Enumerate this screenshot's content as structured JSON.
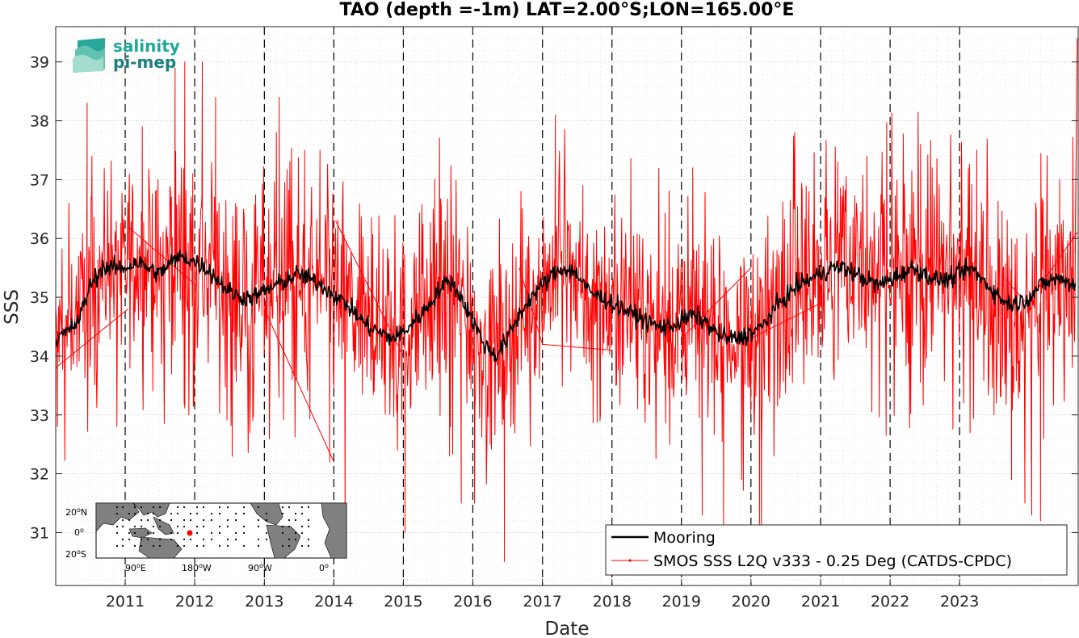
{
  "chart_data": {
    "type": "line",
    "title": "TAO (depth =-1m) LAT=2.00°S;LON=165.00°E",
    "xlabel": "Date",
    "ylabel": "SSS",
    "xlim": [
      "2010-01-01",
      "2024-09-15"
    ],
    "ylim": [
      30.1,
      39.6
    ],
    "yticks": [
      31,
      32,
      33,
      34,
      35,
      36,
      37,
      38,
      39
    ],
    "xticks": [
      {
        "label": "2011",
        "date": "2011-01-01"
      },
      {
        "label": "2012",
        "date": "2012-01-01"
      },
      {
        "label": "2013",
        "date": "2013-01-01"
      },
      {
        "label": "2014",
        "date": "2014-01-01"
      },
      {
        "label": "2015",
        "date": "2015-01-01"
      },
      {
        "label": "2016",
        "date": "2016-01-01"
      },
      {
        "label": "2017",
        "date": "2017-01-01"
      },
      {
        "label": "2018",
        "date": "2018-01-01"
      },
      {
        "label": "2019",
        "date": "2019-01-01"
      },
      {
        "label": "2020",
        "date": "2020-01-01"
      },
      {
        "label": "2021",
        "date": "2021-01-01"
      },
      {
        "label": "2022",
        "date": "2022-01-01"
      },
      {
        "label": "2023",
        "date": "2023-01-01"
      }
    ],
    "grid": true,
    "year_markers": "dashed vertical lines at each year start",
    "legend_position": "bottom-right",
    "series": [
      {
        "name": "Mooring",
        "color": "#000000",
        "style": "line",
        "x": [
          "2010-01-01",
          "2010-03-01",
          "2010-05-01",
          "2010-07-01",
          "2010-09-01",
          "2010-11-01",
          "2011-01-01",
          "2011-03-01",
          "2011-05-01",
          "2011-07-01",
          "2011-09-01",
          "2011-11-01",
          "2012-01-01",
          "2012-03-01",
          "2012-05-01",
          "2012-07-01",
          "2012-09-01",
          "2012-11-01",
          "2013-01-01",
          "2013-03-01",
          "2013-05-01",
          "2013-07-01",
          "2013-09-01",
          "2013-11-01",
          "2014-03-01",
          "2014-05-01",
          "2014-07-01",
          "2014-09-01",
          "2014-11-01",
          "2015-01-01",
          "2015-03-01",
          "2015-05-01",
          "2015-07-01",
          "2015-09-01",
          "2015-11-01",
          "2016-01-01",
          "2016-03-01",
          "2016-05-01",
          "2016-07-01",
          "2016-09-01",
          "2016-11-01",
          "2017-01-01",
          "2017-03-01",
          "2017-05-01",
          "2017-07-01",
          "2017-09-01",
          "2018-01-01",
          "2018-03-01",
          "2018-05-01",
          "2018-07-01",
          "2018-09-01",
          "2018-11-01",
          "2019-01-01",
          "2019-03-01",
          "2019-05-01",
          "2019-07-01",
          "2019-09-01",
          "2019-11-01",
          "2020-01-01",
          "2020-03-01",
          "2020-05-01",
          "2020-07-01",
          "2020-09-01",
          "2020-11-01",
          "2021-01-01",
          "2021-03-01",
          "2021-05-01",
          "2021-07-01",
          "2021-09-01",
          "2021-11-01",
          "2022-01-01",
          "2022-03-01",
          "2022-05-01",
          "2022-07-01",
          "2022-09-01",
          "2022-11-01",
          "2023-01-01",
          "2023-03-01",
          "2023-05-01",
          "2023-07-01",
          "2023-09-01",
          "2023-11-01",
          "2024-01-01",
          "2024-03-01",
          "2024-05-01",
          "2024-07-01",
          "2024-09-01"
        ],
        "y": [
          34.3,
          34.4,
          34.6,
          35.2,
          35.5,
          35.5,
          35.5,
          35.6,
          35.5,
          35.4,
          35.6,
          35.7,
          35.6,
          35.5,
          35.3,
          35.1,
          35.0,
          35.0,
          35.1,
          35.2,
          35.3,
          35.4,
          35.3,
          35.2,
          34.9,
          34.7,
          34.5,
          34.4,
          34.3,
          34.4,
          34.6,
          34.8,
          35.1,
          35.3,
          35.0,
          34.6,
          34.2,
          34.0,
          34.3,
          34.7,
          35.0,
          35.2,
          35.4,
          35.5,
          35.4,
          35.1,
          34.9,
          34.8,
          34.7,
          34.6,
          34.5,
          34.5,
          34.6,
          34.7,
          34.6,
          34.4,
          34.3,
          34.3,
          34.4,
          34.5,
          34.8,
          35.0,
          35.2,
          35.3,
          35.4,
          35.5,
          35.5,
          35.4,
          35.3,
          35.2,
          35.3,
          35.4,
          35.5,
          35.4,
          35.3,
          35.3,
          35.4,
          35.5,
          35.3,
          35.1,
          34.9,
          34.9,
          35.0,
          35.2,
          35.3,
          35.3,
          35.2
        ]
      },
      {
        "name": "SMOS SSS L2Q v333 - 0.25 Deg (CATDS-CPDC)",
        "color": "#ff0000",
        "style": "line with point markers",
        "x": [
          "2010-01-01",
          "2010-03-01",
          "2010-05-01",
          "2010-07-01",
          "2010-09-01",
          "2010-11-01",
          "2011-01-01",
          "2011-03-01",
          "2011-05-01",
          "2011-07-01",
          "2011-09-01",
          "2011-11-01",
          "2012-01-01",
          "2012-03-01",
          "2012-05-01",
          "2012-07-01",
          "2012-09-01",
          "2012-11-01",
          "2013-01-01",
          "2013-03-01",
          "2013-05-01",
          "2013-07-01",
          "2013-09-01",
          "2013-11-01",
          "2014-03-01",
          "2014-05-01",
          "2014-07-01",
          "2014-09-01",
          "2014-11-01",
          "2015-01-01",
          "2015-03-01",
          "2015-05-01",
          "2015-07-01",
          "2015-09-01",
          "2015-11-01",
          "2016-01-01",
          "2016-03-01",
          "2016-05-01",
          "2016-07-01",
          "2016-09-01",
          "2016-11-01",
          "2017-01-01",
          "2017-03-01",
          "2017-05-01",
          "2017-07-01",
          "2017-09-01",
          "2018-01-01",
          "2018-03-01",
          "2018-05-01",
          "2018-07-01",
          "2018-09-01",
          "2018-11-01",
          "2019-01-01",
          "2019-03-01",
          "2019-05-01",
          "2019-07-01",
          "2019-09-01",
          "2019-11-01",
          "2020-01-01",
          "2020-03-01",
          "2020-05-01",
          "2020-07-01",
          "2020-09-01",
          "2020-11-01",
          "2021-01-01",
          "2021-03-01",
          "2021-05-01",
          "2021-07-01",
          "2021-09-01",
          "2021-11-01",
          "2022-01-01",
          "2022-03-01",
          "2022-05-01",
          "2022-07-01",
          "2022-09-01",
          "2022-11-01",
          "2023-01-01",
          "2023-03-01",
          "2023-05-01",
          "2023-07-01",
          "2023-09-01",
          "2023-11-01",
          "2024-01-01",
          "2024-03-01",
          "2024-05-01",
          "2024-07-01",
          "2024-09-01"
        ],
        "y": [
          34.3,
          34.5,
          34.8,
          35.3,
          35.5,
          35.6,
          35.6,
          35.7,
          35.5,
          35.4,
          35.7,
          35.8,
          35.7,
          35.5,
          35.3,
          35.1,
          35.0,
          35.1,
          35.2,
          35.3,
          35.4,
          35.4,
          35.3,
          35.2,
          34.9,
          34.7,
          34.5,
          34.4,
          34.3,
          34.4,
          34.6,
          34.8,
          35.1,
          35.2,
          34.9,
          34.5,
          34.1,
          34.0,
          34.3,
          34.7,
          35.0,
          35.2,
          35.4,
          35.5,
          35.4,
          35.0,
          34.9,
          34.8,
          34.7,
          34.6,
          34.5,
          34.5,
          34.6,
          34.6,
          34.5,
          34.3,
          34.2,
          34.2,
          34.4,
          34.5,
          34.8,
          35.0,
          35.2,
          35.4,
          35.4,
          35.5,
          35.5,
          35.4,
          35.3,
          35.3,
          35.4,
          35.5,
          35.6,
          35.5,
          35.4,
          35.3,
          35.4,
          35.5,
          35.2,
          34.9,
          34.6,
          34.5,
          34.8,
          35.2,
          35.4,
          35.3,
          35.3
        ],
        "spread": [
          0.5,
          0.5,
          0.6,
          0.7,
          0.7,
          0.7,
          0.7,
          0.8,
          0.8,
          0.8,
          0.9,
          0.9,
          0.9,
          0.9,
          0.9,
          0.9,
          0.9,
          0.9,
          0.9,
          0.9,
          0.9,
          0.9,
          0.9,
          0.9,
          0.8,
          0.8,
          0.8,
          0.8,
          0.8,
          0.8,
          0.8,
          0.8,
          0.8,
          0.8,
          0.8,
          0.8,
          0.8,
          0.8,
          0.8,
          0.8,
          0.7,
          0.7,
          0.7,
          0.7,
          0.7,
          0.7,
          0.7,
          0.7,
          0.7,
          0.7,
          0.7,
          0.7,
          0.7,
          0.7,
          0.8,
          0.8,
          0.8,
          0.8,
          0.8,
          0.8,
          0.8,
          0.8,
          0.8,
          0.8,
          0.8,
          0.8,
          0.8,
          0.8,
          0.8,
          0.8,
          0.8,
          0.8,
          0.8,
          0.8,
          0.8,
          0.8,
          0.8,
          0.8,
          0.8,
          0.8,
          0.9,
          0.9,
          0.9,
          0.8,
          0.8,
          0.8,
          0.8
        ],
        "extremes": [
          {
            "date": "2010-01-10",
            "value": 32.8
          },
          {
            "date": "2010-06-15",
            "value": 38.3
          },
          {
            "date": "2010-07-10",
            "value": 37.4
          },
          {
            "date": "2011-04-01",
            "value": 37.9
          },
          {
            "date": "2011-09-01",
            "value": 36.7
          },
          {
            "date": "2011-09-20",
            "value": 38.9
          },
          {
            "date": "2011-11-10",
            "value": 39.0
          },
          {
            "date": "2012-02-10",
            "value": 39.0
          },
          {
            "date": "2012-04-20",
            "value": 38.4
          },
          {
            "date": "2012-07-15",
            "value": 33.5
          },
          {
            "date": "2012-11-01",
            "value": 32.9
          },
          {
            "date": "2013-03-05",
            "value": 37.8
          },
          {
            "date": "2013-03-20",
            "value": 38.4
          },
          {
            "date": "2013-08-01",
            "value": 37.5
          },
          {
            "date": "2013-10-20",
            "value": 37.5
          },
          {
            "date": "2013-12-10",
            "value": 32.2
          },
          {
            "date": "2014-03-01",
            "value": 31.0
          },
          {
            "date": "2014-08-01",
            "value": 33.4
          },
          {
            "date": "2014-12-01",
            "value": 32.4
          },
          {
            "date": "2015-01-10",
            "value": 31.0
          },
          {
            "date": "2015-06-15",
            "value": 37.0
          },
          {
            "date": "2015-09-01",
            "value": 32.3
          },
          {
            "date": "2015-11-01",
            "value": 31.5
          },
          {
            "date": "2016-01-10",
            "value": 31.5
          },
          {
            "date": "2016-04-01",
            "value": 32.5
          },
          {
            "date": "2016-06-15",
            "value": 30.5
          },
          {
            "date": "2016-09-10",
            "value": 36.8
          },
          {
            "date": "2017-03-10",
            "value": 38.1
          },
          {
            "date": "2017-08-01",
            "value": 36.9
          },
          {
            "date": "2017-11-01",
            "value": 33.0
          },
          {
            "date": "2018-04-10",
            "value": 37.0
          },
          {
            "date": "2018-11-01",
            "value": 32.5
          },
          {
            "date": "2019-03-01",
            "value": 37.2
          },
          {
            "date": "2019-04-20",
            "value": 31.3
          },
          {
            "date": "2019-08-10",
            "value": 31.1
          },
          {
            "date": "2020-02-15",
            "value": 31.1
          },
          {
            "date": "2020-02-25",
            "value": 31.0
          },
          {
            "date": "2020-05-01",
            "value": 32.3
          },
          {
            "date": "2020-11-01",
            "value": 36.8
          },
          {
            "date": "2021-04-01",
            "value": 37.3
          },
          {
            "date": "2021-09-01",
            "value": 37.4
          },
          {
            "date": "2022-06-10",
            "value": 37.6
          },
          {
            "date": "2022-08-10",
            "value": 37.2
          },
          {
            "date": "2023-04-01",
            "value": 37.5
          },
          {
            "date": "2023-07-01",
            "value": 33.0
          },
          {
            "date": "2023-10-01",
            "value": 31.9
          },
          {
            "date": "2023-12-10",
            "value": 31.5
          },
          {
            "date": "2024-01-15",
            "value": 31.3
          },
          {
            "date": "2024-03-01",
            "value": 31.2
          },
          {
            "date": "2024-06-10",
            "value": 37.0
          },
          {
            "date": "2024-09-10",
            "value": 39.4
          }
        ],
        "connector_lines": [
          {
            "from": {
              "date": "2010-01-01",
              "value": 33.8
            },
            "to": {
              "date": "2011-01-15",
              "value": 34.8
            }
          },
          {
            "from": {
              "date": "2011-01-15",
              "value": 36.2
            },
            "to": {
              "date": "2012-01-10",
              "value": 35.2
            }
          },
          {
            "from": {
              "date": "2013-01-01",
              "value": 34.8
            },
            "to": {
              "date": "2014-01-01",
              "value": 32.2
            }
          },
          {
            "from": {
              "date": "2014-01-10",
              "value": 36.3
            },
            "to": {
              "date": "2015-01-01",
              "value": 34.0
            }
          },
          {
            "from": {
              "date": "2016-09-01",
              "value": 35.5
            },
            "to": {
              "date": "2017-01-01",
              "value": 34.2
            }
          },
          {
            "from": {
              "date": "2017-01-01",
              "value": 34.2
            },
            "to": {
              "date": "2018-01-01",
              "value": 34.1
            }
          },
          {
            "from": {
              "date": "2019-01-01",
              "value": 34.3
            },
            "to": {
              "date": "2020-01-01",
              "value": 35.5
            }
          },
          {
            "from": {
              "date": "2020-01-01",
              "value": 34.3
            },
            "to": {
              "date": "2021-01-01",
              "value": 34.9
            }
          },
          {
            "from": {
              "date": "2023-09-01",
              "value": 35.3
            },
            "to": {
              "date": "2024-01-15",
              "value": 34.8
            }
          },
          {
            "from": {
              "date": "2024-01-15",
              "value": 35.0
            },
            "to": {
              "date": "2024-09-10",
              "value": 36.1
            }
          }
        ]
      }
    ]
  },
  "legend": {
    "mooring": "Mooring",
    "smos": "SMOS SSS L2Q v333 - 0.25 Deg (CATDS-CPDC)"
  },
  "logo": {
    "line1": "salinity",
    "line2": "pi-mep"
  },
  "inset_map": {
    "lat_labels": [
      "20",
      "N",
      "0",
      "20",
      "S"
    ],
    "lon_labels": [
      "90",
      "E",
      "180",
      "W",
      "90",
      "W",
      "0"
    ],
    "sup": "o",
    "marker_color": "#ff0000"
  },
  "colors": {
    "smos": "#ff0000",
    "mooring": "#000000",
    "land": "#808080",
    "ocean": "#ffffff"
  }
}
